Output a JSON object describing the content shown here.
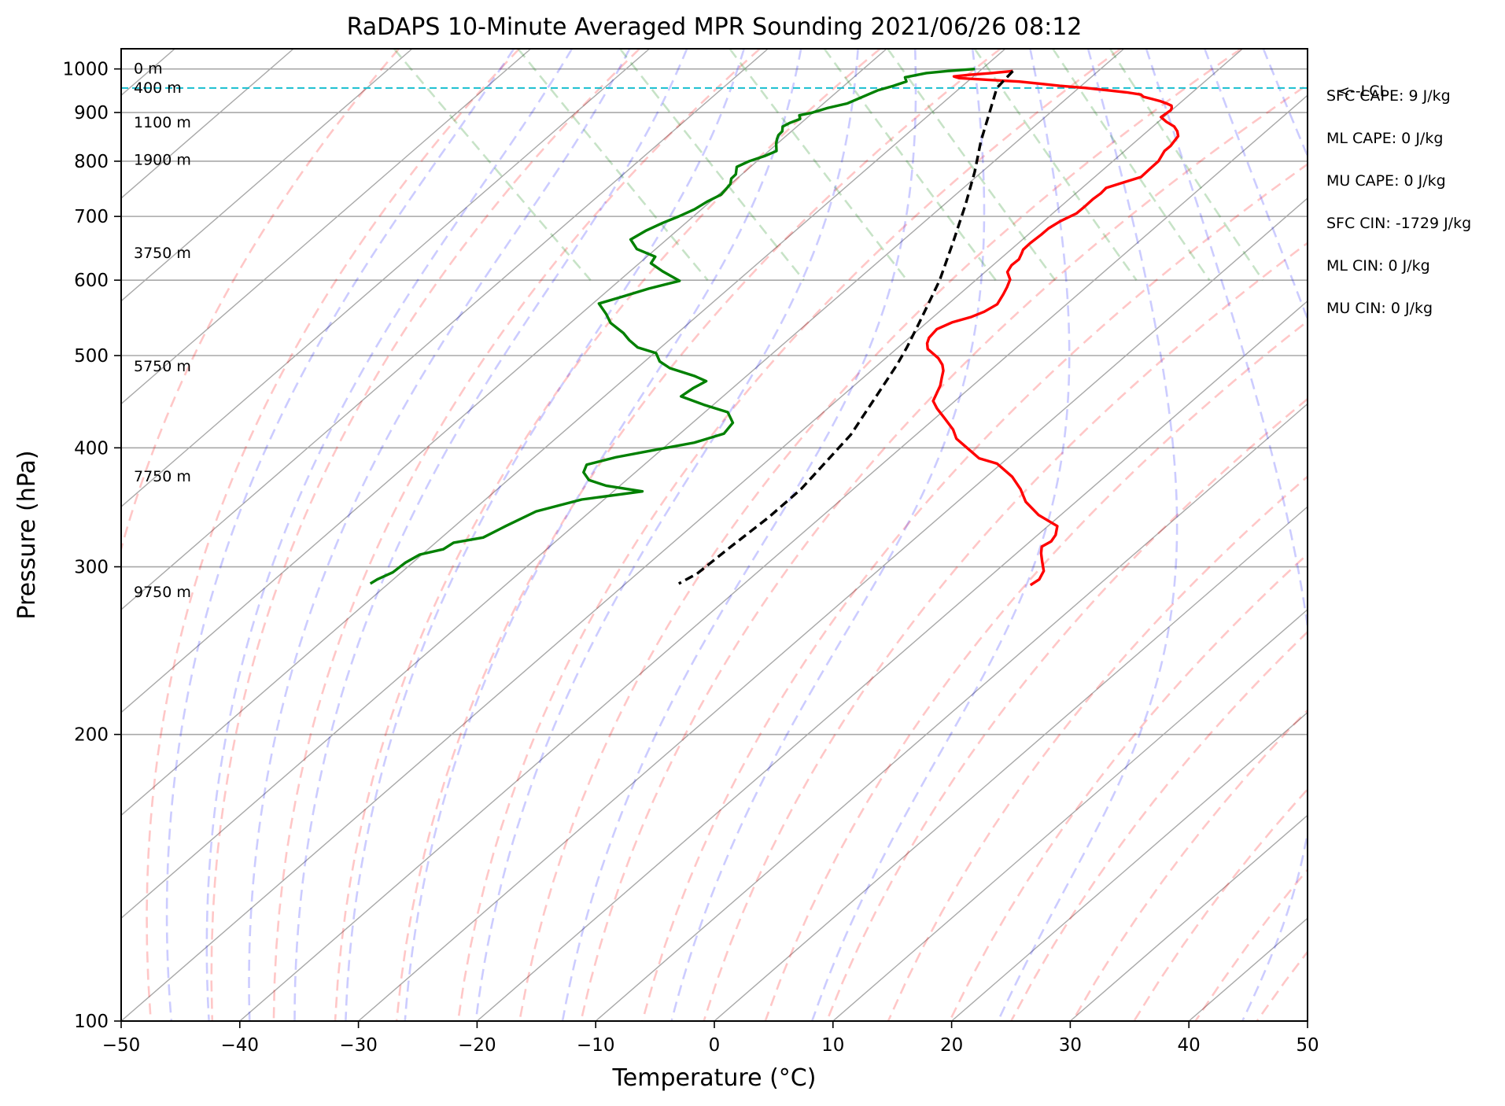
{
  "chart_data": {
    "type": "skew-t",
    "title": "RaDAPS 10-Minute Averaged MPR Sounding 2021/06/26 08:12",
    "xlabel": "Temperature (°C)",
    "ylabel": "Pressure (hPa)",
    "xlim": [
      -50,
      50
    ],
    "ylim": [
      1050,
      100
    ],
    "yscale": "log",
    "grid": true,
    "x_ticks": [
      -50,
      -40,
      -30,
      -20,
      -10,
      0,
      10,
      20,
      30,
      40,
      50
    ],
    "x_tick_labels": [
      "−50",
      "−40",
      "−30",
      "−20",
      "−10",
      "0",
      "10",
      "20",
      "30",
      "40",
      "50"
    ],
    "y_ticks": [
      1000,
      900,
      800,
      700,
      600,
      500,
      400,
      300,
      200,
      100
    ],
    "y_tick_labels": [
      "1000",
      "900",
      "800",
      "700",
      "600",
      "500",
      "400",
      "300",
      "200",
      "100"
    ],
    "height_labels": [
      {
        "label": "0 m",
        "pressure": 1000
      },
      {
        "label": "400 m",
        "pressure": 955
      },
      {
        "label": "1100 m",
        "pressure": 878
      },
      {
        "label": "1900 m",
        "pressure": 802
      },
      {
        "label": "3750 m",
        "pressure": 640
      },
      {
        "label": "5750 m",
        "pressure": 487
      },
      {
        "label": "7750 m",
        "pressure": 373
      },
      {
        "label": "9750 m",
        "pressure": 282
      }
    ],
    "lcl": {
      "pressure": 955,
      "label": "<--LCL"
    },
    "indices": [
      "SFC CAPE: 9 J/kg",
      "ML CAPE: 0 J/kg",
      "MU CAPE: 0 J/kg",
      "SFC CIN: -1729 J/kg",
      "ML CIN: 0 J/kg",
      "MU CIN: 0 J/kg"
    ],
    "series": [
      {
        "name": "",
        "role": "temperature",
        "color": "#ff0000",
        "points": [
          [
            23.0,
            995
          ],
          [
            21.0,
            990
          ],
          [
            19.0,
            986
          ],
          [
            17.5,
            982
          ],
          [
            17.8,
            978
          ],
          [
            20.0,
            974
          ],
          [
            22.5,
            970
          ],
          [
            24.0,
            965
          ],
          [
            25.5,
            960
          ],
          [
            27.5,
            955
          ],
          [
            29.0,
            950
          ],
          [
            30.5,
            945
          ],
          [
            31.5,
            940
          ],
          [
            31.5,
            935
          ],
          [
            32.0,
            930
          ],
          [
            32.5,
            925
          ],
          [
            32.8,
            920
          ],
          [
            33.0,
            915
          ],
          [
            32.8,
            910
          ],
          [
            32.5,
            905
          ],
          [
            32.0,
            900
          ],
          [
            31.5,
            895
          ],
          [
            31.0,
            890
          ],
          [
            31.0,
            880
          ],
          [
            31.2,
            870
          ],
          [
            31.0,
            860
          ],
          [
            30.6,
            850
          ],
          [
            29.8,
            840
          ],
          [
            29.0,
            830
          ],
          [
            28.0,
            820
          ],
          [
            26.5,
            800
          ],
          [
            25.0,
            785
          ],
          [
            23.5,
            770
          ],
          [
            21.5,
            760
          ],
          [
            19.5,
            750
          ],
          [
            18.5,
            740
          ],
          [
            17.3,
            730
          ],
          [
            16.0,
            718
          ],
          [
            14.5,
            705
          ],
          [
            12.4,
            692
          ],
          [
            10.7,
            680
          ],
          [
            9.5,
            670
          ],
          [
            7.7,
            656
          ],
          [
            6.5,
            646
          ],
          [
            6.0,
            640
          ],
          [
            5.2,
            631
          ],
          [
            4.0,
            622
          ],
          [
            3.0,
            612
          ],
          [
            2.5,
            601
          ],
          [
            1.5,
            590
          ],
          [
            0.5,
            580
          ],
          [
            -1.0,
            566
          ],
          [
            -2.8,
            556
          ],
          [
            -4.4,
            549
          ],
          [
            -6.5,
            542
          ],
          [
            -8.5,
            533
          ],
          [
            -10.0,
            522
          ],
          [
            -10.7,
            515
          ],
          [
            -11.2,
            508
          ],
          [
            -11.2,
            497
          ],
          [
            -11.5,
            489
          ],
          [
            -12.0,
            482
          ],
          [
            -12.8,
            474
          ],
          [
            -13.7,
            465
          ],
          [
            -14.8,
            456
          ],
          [
            -15.8,
            448
          ],
          [
            -16.2,
            440
          ],
          [
            -16.5,
            430
          ],
          [
            -16.9,
            418
          ],
          [
            -17.5,
            409
          ],
          [
            -17.5,
            402
          ],
          [
            -17.5,
            396
          ],
          [
            -17.5,
            390
          ],
          [
            -16.5,
            385
          ],
          [
            -16.5,
            373
          ],
          [
            -17.0,
            362
          ],
          [
            -17.8,
            351
          ],
          [
            -18.0,
            340
          ],
          [
            -17.5,
            331
          ],
          [
            -18.5,
            324
          ],
          [
            -19.5,
            319
          ],
          [
            -20.8,
            315
          ],
          [
            -21.5,
            310
          ],
          [
            -22.2,
            304
          ],
          [
            -23.0,
            297
          ],
          [
            -24.2,
            291
          ],
          [
            -25.5,
            287
          ]
        ]
      },
      {
        "name": "",
        "role": "dewpoint",
        "color": "#008000",
        "points": [
          [
            20.0,
            1000
          ],
          [
            17.5,
            995
          ],
          [
            15.5,
            990
          ],
          [
            13.3,
            980
          ],
          [
            13.0,
            970
          ],
          [
            11.5,
            960
          ],
          [
            9.8,
            950
          ],
          [
            8.5,
            940
          ],
          [
            7.2,
            930
          ],
          [
            5.9,
            920
          ],
          [
            3.8,
            910
          ],
          [
            2.1,
            900
          ],
          [
            0.7,
            894
          ],
          [
            0.4,
            886
          ],
          [
            -0.8,
            878
          ],
          [
            -1.8,
            870
          ],
          [
            -2.3,
            860
          ],
          [
            -3.0,
            852
          ],
          [
            -3.5,
            844
          ],
          [
            -4.0,
            835
          ],
          [
            -4.7,
            820
          ],
          [
            -6.2,
            810
          ],
          [
            -8.0,
            800
          ],
          [
            -9.6,
            789
          ],
          [
            -10.4,
            775
          ],
          [
            -11.2,
            767
          ],
          [
            -11.8,
            757
          ],
          [
            -13.6,
            738
          ],
          [
            -15.4,
            726
          ],
          [
            -17.3,
            712
          ],
          [
            -19.3,
            700
          ],
          [
            -21.3,
            689
          ],
          [
            -23.5,
            676
          ],
          [
            -25.6,
            662
          ],
          [
            -26.0,
            647
          ],
          [
            -25.2,
            635
          ],
          [
            -26.2,
            625
          ],
          [
            -26.0,
            613
          ],
          [
            -25.5,
            599
          ],
          [
            -28.8,
            588
          ],
          [
            -32.0,
            576
          ],
          [
            -34.5,
            567
          ],
          [
            -34.9,
            553
          ],
          [
            -35.4,
            541
          ],
          [
            -35.3,
            528
          ],
          [
            -35.5,
            519
          ],
          [
            -35.5,
            510
          ],
          [
            -34.5,
            503
          ],
          [
            -35.0,
            493
          ],
          [
            -34.8,
            485
          ],
          [
            -33.5,
            476
          ],
          [
            -33.0,
            470
          ],
          [
            -34.8,
            462
          ],
          [
            -36.6,
            453
          ],
          [
            -35.5,
            444
          ],
          [
            -34.2,
            436
          ],
          [
            -34.8,
            425
          ],
          [
            -36.6,
            414
          ],
          [
            -40.0,
            405
          ],
          [
            -44.0,
            398
          ],
          [
            -48.0,
            391
          ],
          [
            -51.2,
            384
          ],
          [
            -52.2,
            377
          ],
          [
            -52.5,
            370
          ],
          [
            -51.6,
            365
          ],
          [
            -49.1,
            360
          ],
          [
            -55.0,
            353
          ],
          [
            -60.0,
            343
          ],
          [
            -64.0,
            331
          ],
          [
            -67.0,
            322
          ],
          [
            -70.0,
            318
          ],
          [
            -71.5,
            313
          ],
          [
            -74.0,
            309
          ],
          [
            -76.0,
            303
          ],
          [
            -78.0,
            296
          ],
          [
            -80.0,
            291
          ],
          [
            -81.0,
            288
          ]
        ]
      },
      {
        "name": "",
        "role": "parcel",
        "color": "#000000",
        "dashed": true,
        "points": [
          [
            23.0,
            995
          ],
          [
            20.0,
            955
          ],
          [
            17.0,
            900
          ],
          [
            13.5,
            840
          ],
          [
            10.0,
            780
          ],
          [
            6.0,
            720
          ],
          [
            1.5,
            660
          ],
          [
            -3.5,
            600
          ],
          [
            -9.5,
            540
          ],
          [
            -12.8,
            510
          ],
          [
            -15.2,
            490
          ],
          [
            -18.5,
            465
          ],
          [
            -22.0,
            440
          ],
          [
            -26.0,
            413
          ],
          [
            -30.5,
            388
          ],
          [
            -35.5,
            362
          ],
          [
            -41.0,
            338
          ],
          [
            -47.0,
            315
          ],
          [
            -52.5,
            295
          ],
          [
            -55.0,
            288
          ]
        ]
      }
    ]
  }
}
